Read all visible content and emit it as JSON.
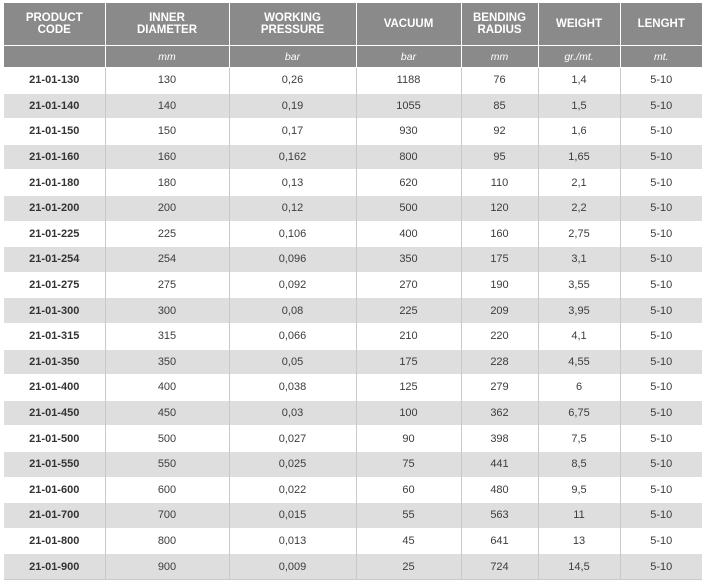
{
  "table": {
    "headers": [
      "PRODUCT\nCODE",
      "INNER\nDIAMETER",
      "WORKING\nPRESSURE",
      "VACUUM",
      "BENDING\nRADIUS",
      "WEIGHT",
      "LENGHT"
    ],
    "units": [
      "",
      "mm",
      "bar",
      "bar",
      "mm",
      "gr./mt.",
      "mt."
    ],
    "rows": [
      [
        "21-01-130",
        "130",
        "0,26",
        "1188",
        "76",
        "1,4",
        "5-10"
      ],
      [
        "21-01-140",
        "140",
        "0,19",
        "1055",
        "85",
        "1,5",
        "5-10"
      ],
      [
        "21-01-150",
        "150",
        "0,17",
        "930",
        "92",
        "1,6",
        "5-10"
      ],
      [
        "21-01-160",
        "160",
        "0,162",
        "800",
        "95",
        "1,65",
        "5-10"
      ],
      [
        "21-01-180",
        "180",
        "0,13",
        "620",
        "110",
        "2,1",
        "5-10"
      ],
      [
        "21-01-200",
        "200",
        "0,12",
        "500",
        "120",
        "2,2",
        "5-10"
      ],
      [
        "21-01-225",
        "225",
        "0,106",
        "400",
        "160",
        "2,75",
        "5-10"
      ],
      [
        "21-01-254",
        "254",
        "0,096",
        "350",
        "175",
        "3,1",
        "5-10"
      ],
      [
        "21-01-275",
        "275",
        "0,092",
        "270",
        "190",
        "3,55",
        "5-10"
      ],
      [
        "21-01-300",
        "300",
        "0,08",
        "225",
        "209",
        "3,95",
        "5-10"
      ],
      [
        "21-01-315",
        "315",
        "0,066",
        "210",
        "220",
        "4,1",
        "5-10"
      ],
      [
        "21-01-350",
        "350",
        "0,05",
        "175",
        "228",
        "4,55",
        "5-10"
      ],
      [
        "21-01-400",
        "400",
        "0,038",
        "125",
        "279",
        "6",
        "5-10"
      ],
      [
        "21-01-450",
        "450",
        "0,03",
        "100",
        "362",
        "6,75",
        "5-10"
      ],
      [
        "21-01-500",
        "500",
        "0,027",
        "90",
        "398",
        "7,5",
        "5-10"
      ],
      [
        "21-01-550",
        "550",
        "0,025",
        "75",
        "441",
        "8,5",
        "5-10"
      ],
      [
        "21-01-600",
        "600",
        "0,022",
        "60",
        "480",
        "9,5",
        "5-10"
      ],
      [
        "21-01-700",
        "700",
        "0,015",
        "55",
        "563",
        "11",
        "5-10"
      ],
      [
        "21-01-800",
        "800",
        "0,013",
        "45",
        "641",
        "13",
        "5-10"
      ],
      [
        "21-01-900",
        "900",
        "0,009",
        "25",
        "724",
        "14,5",
        "5-10"
      ]
    ]
  },
  "colors": {
    "header_background": "#8a8a8a",
    "header_text": "#ffffff",
    "row_alt_background": "#dedede",
    "row_background": "#ffffff"
  }
}
